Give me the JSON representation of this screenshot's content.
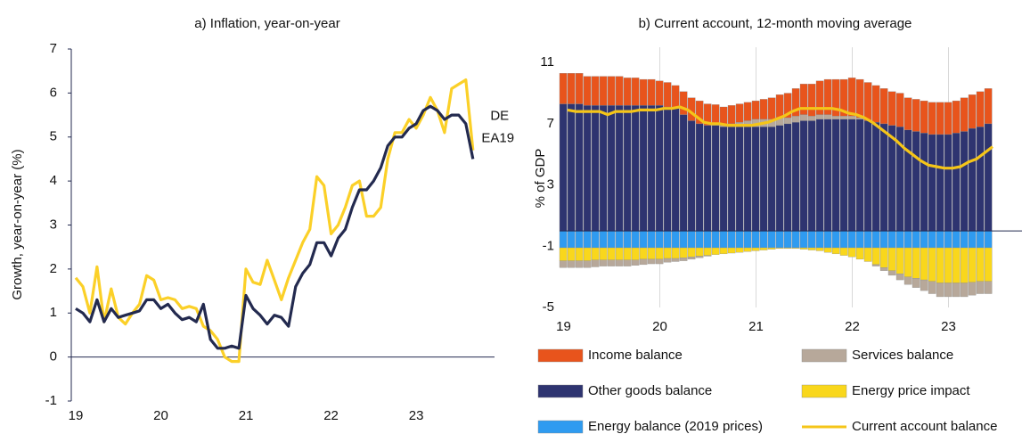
{
  "chart_data": [
    {
      "type": "line",
      "title": "a) Inflation, year-on-year",
      "y_label": "Growth, year-on-year (%)",
      "categories": [
        "19",
        null,
        null,
        null,
        null,
        null,
        null,
        null,
        null,
        null,
        null,
        null,
        "20",
        null,
        null,
        null,
        null,
        null,
        null,
        null,
        null,
        null,
        null,
        null,
        "21",
        null,
        null,
        null,
        null,
        null,
        null,
        null,
        null,
        null,
        null,
        null,
        "22",
        null,
        null,
        null,
        null,
        null,
        null,
        null,
        null,
        null,
        null,
        null,
        "23",
        null,
        null,
        null,
        null,
        null,
        null,
        null,
        null
      ],
      "ylim": [
        -1,
        7
      ],
      "yticks": [
        -1,
        0,
        1,
        2,
        3,
        4,
        5,
        6,
        7
      ],
      "series": [
        {
          "name": "DE",
          "color": "#fbd028",
          "values": [
            1.8,
            1.6,
            1.0,
            2.05,
            0.8,
            1.55,
            0.9,
            0.75,
            1.0,
            1.2,
            1.85,
            1.75,
            1.3,
            1.35,
            1.3,
            1.1,
            1.15,
            1.1,
            0.7,
            0.6,
            0.4,
            0.0,
            -0.1,
            -0.1,
            2.0,
            1.7,
            1.65,
            2.2,
            1.75,
            1.3,
            1.8,
            2.2,
            2.6,
            2.9,
            4.1,
            3.9,
            2.8,
            3.0,
            3.4,
            3.9,
            4.0,
            3.2,
            3.2,
            3.4,
            4.5,
            5.1,
            5.1,
            5.4,
            5.2,
            5.5,
            5.9,
            5.6,
            5.1,
            6.1,
            6.2,
            6.3,
            4.7
          ]
        },
        {
          "name": "EA19",
          "color": "#232a4f",
          "values": [
            1.1,
            1.0,
            0.8,
            1.3,
            0.8,
            1.1,
            0.9,
            0.95,
            1.0,
            1.05,
            1.3,
            1.3,
            1.1,
            1.2,
            1.0,
            0.85,
            0.9,
            0.8,
            1.2,
            0.4,
            0.2,
            0.2,
            0.25,
            0.2,
            1.4,
            1.1,
            0.95,
            0.75,
            0.95,
            0.9,
            0.7,
            1.6,
            1.9,
            2.1,
            2.6,
            2.6,
            2.3,
            2.7,
            2.9,
            3.4,
            3.8,
            3.8,
            4.0,
            4.3,
            4.8,
            5.0,
            5.0,
            5.2,
            5.3,
            5.6,
            5.7,
            5.6,
            5.4,
            5.5,
            5.5,
            5.3,
            4.5
          ]
        }
      ]
    },
    {
      "type": "bar",
      "stacked": true,
      "title": "b) Current account, 12-month moving average",
      "y_label": "% of GDP",
      "categories": [
        "19",
        null,
        null,
        null,
        null,
        null,
        null,
        null,
        null,
        null,
        null,
        null,
        "20",
        null,
        null,
        null,
        null,
        null,
        null,
        null,
        null,
        null,
        null,
        null,
        "21",
        null,
        null,
        null,
        null,
        null,
        null,
        null,
        null,
        null,
        null,
        null,
        "22",
        null,
        null,
        null,
        null,
        null,
        null,
        null,
        null,
        null,
        null,
        null,
        "23",
        null,
        null,
        null,
        null,
        null
      ],
      "ylim": [
        -5,
        12
      ],
      "yticks": [
        11,
        7,
        3,
        -1,
        -5
      ],
      "grid": true,
      "series": [
        {
          "name": "Energy balance (2019 prices)",
          "color": "#2f9bf0",
          "values": [
            -1.1,
            -1.1,
            -1.1,
            -1.1,
            -1.1,
            -1.1,
            -1.1,
            -1.1,
            -1.1,
            -1.1,
            -1.1,
            -1.1,
            -1.1,
            -1.1,
            -1.1,
            -1.1,
            -1.1,
            -1.1,
            -1.1,
            -1.1,
            -1.1,
            -1.1,
            -1.1,
            -1.1,
            -1.1,
            -1.1,
            -1.1,
            -1.1,
            -1.1,
            -1.1,
            -1.1,
            -1.1,
            -1.1,
            -1.1,
            -1.1,
            -1.1,
            -1.1,
            -1.1,
            -1.1,
            -1.1,
            -1.1,
            -1.1,
            -1.1,
            -1.1,
            -1.1,
            -1.1,
            -1.1,
            -1.1,
            -1.1,
            -1.1,
            -1.1,
            -1.1,
            -1.1,
            -1.1
          ]
        },
        {
          "name": "Energy price impact",
          "color": "#f9d71c",
          "values": [
            -0.85,
            -0.85,
            -0.85,
            -0.85,
            -0.8,
            -0.8,
            -0.8,
            -0.8,
            -0.8,
            -0.8,
            -0.75,
            -0.75,
            -0.75,
            -0.7,
            -0.7,
            -0.65,
            -0.6,
            -0.55,
            -0.5,
            -0.45,
            -0.4,
            -0.35,
            -0.3,
            -0.25,
            -0.2,
            -0.15,
            -0.1,
            -0.05,
            -0.05,
            -0.05,
            -0.1,
            -0.15,
            -0.2,
            -0.3,
            -0.4,
            -0.5,
            -0.6,
            -0.75,
            -0.9,
            -1.1,
            -1.3,
            -1.5,
            -1.7,
            -1.9,
            -2.0,
            -2.1,
            -2.2,
            -2.3,
            -2.3,
            -2.3,
            -2.3,
            -2.25,
            -2.2,
            -2.2
          ]
        },
        {
          "name": "Other goods balance",
          "color": "#2e3470",
          "values": [
            8.3,
            8.3,
            8.3,
            8.2,
            8.2,
            8.2,
            8.2,
            8.2,
            8.2,
            8.2,
            8.2,
            8.2,
            8.2,
            8.1,
            8.0,
            7.6,
            7.2,
            7.0,
            6.9,
            6.9,
            6.8,
            6.8,
            6.8,
            6.8,
            6.8,
            6.8,
            6.8,
            6.9,
            7.0,
            7.1,
            7.2,
            7.2,
            7.3,
            7.3,
            7.3,
            7.3,
            7.3,
            7.3,
            7.2,
            7.1,
            7.0,
            6.9,
            6.8,
            6.6,
            6.5,
            6.4,
            6.3,
            6.3,
            6.3,
            6.4,
            6.5,
            6.7,
            6.8,
            7.0
          ]
        },
        {
          "name": "Services balance",
          "color": "#b7a89a",
          "values": [
            -0.45,
            -0.45,
            -0.45,
            -0.45,
            -0.45,
            -0.4,
            -0.4,
            -0.4,
            -0.4,
            -0.35,
            -0.35,
            -0.3,
            -0.3,
            -0.25,
            -0.2,
            -0.2,
            -0.15,
            -0.1,
            -0.05,
            0.05,
            0.1,
            0.2,
            0.3,
            0.4,
            0.5,
            0.5,
            0.5,
            0.5,
            0.4,
            0.4,
            0.4,
            0.3,
            0.3,
            0.3,
            0.2,
            0.2,
            0.2,
            0.1,
            0.0,
            -0.1,
            -0.2,
            -0.3,
            -0.4,
            -0.5,
            -0.6,
            -0.7,
            -0.8,
            -0.9,
            -0.9,
            -0.9,
            -0.9,
            -0.85,
            -0.8,
            -0.8
          ]
        },
        {
          "name": "Income balance",
          "color": "#e8541c",
          "values": [
            2.0,
            2.0,
            2.0,
            1.9,
            1.9,
            1.9,
            1.9,
            1.9,
            1.8,
            1.8,
            1.7,
            1.7,
            1.6,
            1.6,
            1.5,
            1.5,
            1.5,
            1.5,
            1.4,
            1.3,
            1.2,
            1.2,
            1.2,
            1.2,
            1.2,
            1.3,
            1.4,
            1.5,
            1.6,
            1.8,
            2.0,
            2.1,
            2.2,
            2.3,
            2.4,
            2.4,
            2.5,
            2.5,
            2.5,
            2.4,
            2.3,
            2.2,
            2.2,
            2.1,
            2.1,
            2.1,
            2.1,
            2.1,
            2.1,
            2.1,
            2.2,
            2.2,
            2.3,
            2.3
          ]
        },
        {
          "name": "Current account balance",
          "type": "line",
          "color": "#f5c518",
          "values": [
            7.9,
            7.8,
            7.8,
            7.8,
            7.8,
            7.6,
            7.8,
            7.8,
            7.8,
            7.9,
            7.9,
            7.9,
            8.0,
            8.0,
            8.1,
            7.9,
            7.5,
            7.1,
            7.0,
            7.0,
            6.9,
            6.9,
            6.9,
            6.9,
            7.0,
            7.1,
            7.3,
            7.5,
            7.8,
            8.0,
            8.0,
            8.0,
            8.0,
            8.0,
            7.9,
            7.7,
            7.6,
            7.4,
            7.1,
            6.7,
            6.3,
            5.9,
            5.4,
            5.0,
            4.6,
            4.3,
            4.2,
            4.1,
            4.1,
            4.2,
            4.5,
            4.7,
            5.1,
            5.5
          ]
        }
      ]
    }
  ]
}
